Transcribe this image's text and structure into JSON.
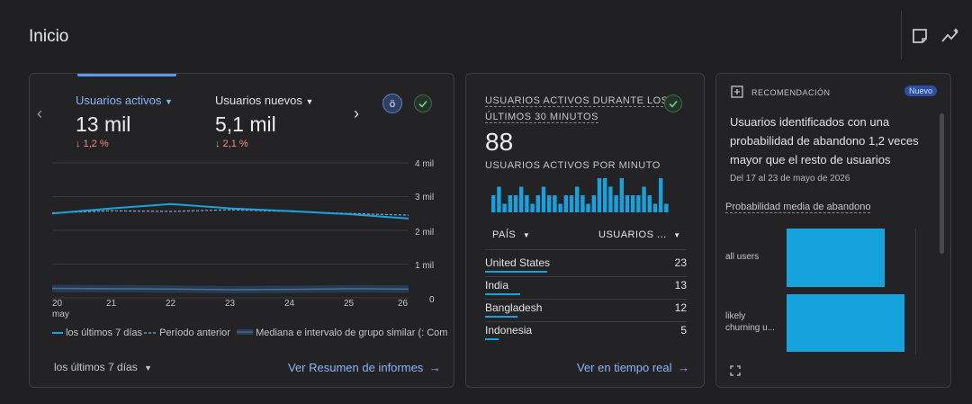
{
  "header": {
    "title": "Inicio"
  },
  "overview": {
    "metric1": {
      "label": "Usuarios activos",
      "value": "13 mil",
      "change": "↓ 1,2 %"
    },
    "metric2": {
      "label": "Usuarios nuevos",
      "value": "5,1 mil",
      "change": "↓ 2,1 %"
    },
    "y_ticks": [
      "4 mil",
      "3 mil",
      "2 mil",
      "1 mil",
      "0"
    ],
    "x_ticks": [
      "20",
      "21",
      "22",
      "23",
      "24",
      "25",
      "26"
    ],
    "x_sub": "may",
    "legend": [
      "los últimos 7 días",
      "Período anterior",
      "Mediana e intervalo de grupo similar (: Com"
    ],
    "date_range": "los últimos 7 días",
    "link": "Ver Resumen de informes"
  },
  "realtime": {
    "title_line1": "USUARIOS ACTIVOS DURANTE LOS",
    "title_line2": "ÚLTIMOS 30 MINUTOS",
    "value": "88",
    "subtitle": "USUARIOS ACTIVOS POR MINUTO",
    "col_country": "PAÍS",
    "col_users": "USUARIOS ...",
    "rows": [
      {
        "country": "United States",
        "users": "23",
        "share": 0.99
      },
      {
        "country": "India",
        "users": "13",
        "share": 0.56
      },
      {
        "country": "Bangladesh",
        "users": "12",
        "share": 0.52
      },
      {
        "country": "Indonesia",
        "users": "5",
        "share": 0.22
      }
    ],
    "link": "Ver en tiempo real"
  },
  "recommendation": {
    "label": "RECOMENDACIÓN",
    "badge": "Nuevo",
    "text_line1": "Usuarios identificados con una",
    "text_line2": "probabilidad de abandono 1,2 veces",
    "text_line3": "mayor que el resto de usuarios",
    "date": "Del 17 al 23 de mayo de 2026",
    "metric": "Probabilidad media de abandono",
    "bars": [
      {
        "label1": "all users",
        "label2": "",
        "value": 1.0
      },
      {
        "label1": "likely",
        "label2": "churning u...",
        "value": 1.2
      }
    ]
  },
  "chart_data": [
    {
      "type": "line",
      "x": [
        "20 may",
        "21",
        "22",
        "23",
        "24",
        "25",
        "26"
      ],
      "series": [
        {
          "name": "los últimos 7 días",
          "values": [
            2500,
            2650,
            2780,
            2650,
            2570,
            2480,
            2350
          ]
        },
        {
          "name": "Período anterior",
          "values": [
            2520,
            2580,
            2560,
            2610,
            2560,
            2500,
            2450
          ]
        },
        {
          "name": "Mediana e intervalo de grupo similar (: Com",
          "values": [
            280,
            270,
            260,
            240,
            250,
            270,
            260
          ]
        }
      ],
      "ylim": [
        0,
        4000
      ],
      "y_ticks": [
        "4 mil",
        "3 mil",
        "2 mil",
        "1 mil",
        "0"
      ]
    },
    {
      "type": "bar",
      "subtitle": "USUARIOS ACTIVOS POR MINUTO",
      "values": [
        2,
        3,
        1,
        2,
        2,
        3,
        2,
        1,
        2,
        3,
        2,
        2,
        1,
        2,
        2,
        3,
        2,
        1,
        2,
        4,
        4,
        3,
        2,
        4,
        2,
        2,
        2,
        3,
        2,
        1,
        4,
        1
      ]
    },
    {
      "type": "bar",
      "title": "Probabilidad media de abandono",
      "categories": [
        "all users",
        "likely churning u..."
      ],
      "values": [
        1.0,
        1.2
      ]
    }
  ]
}
